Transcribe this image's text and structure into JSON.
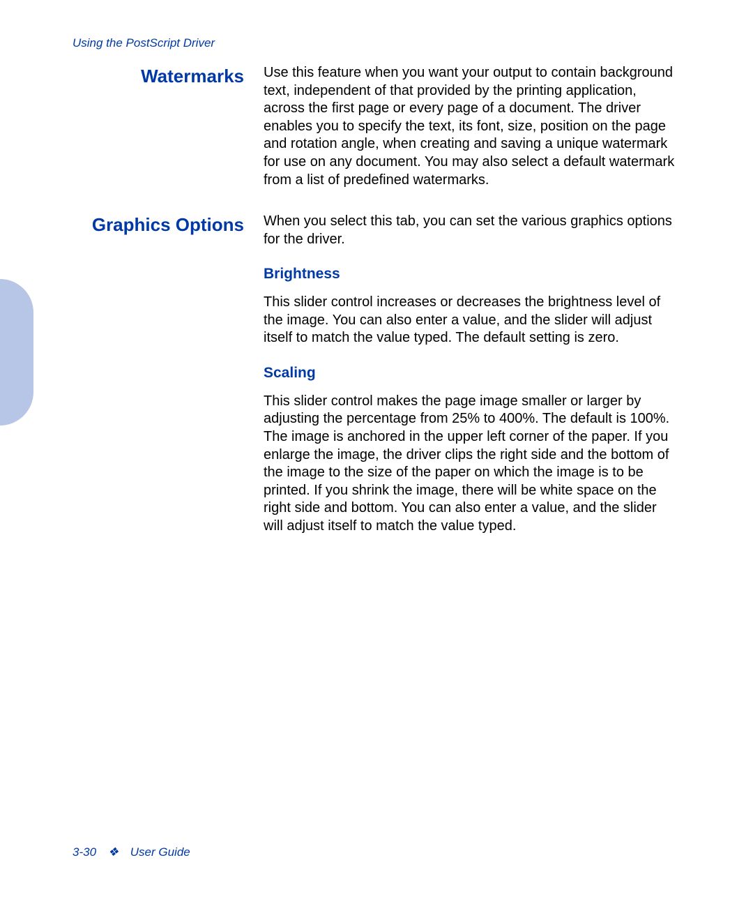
{
  "header": {
    "chapter": "Using the PostScript Driver"
  },
  "sections": [
    {
      "label": "Watermarks",
      "body": "Use this feature when you want your output to contain background text, independent of that provided by the printing application, across the first page or every page of a document. The driver enables you to specify the text, its font, size, position on the page and rotation angle, when creating and saving a unique watermark for use on any document. You may also select a default watermark from a list of predefined watermarks.",
      "subsections": []
    },
    {
      "label": "Graphics Options",
      "body": "When you select this tab, you can set the various graphics options for the driver.",
      "subsections": [
        {
          "heading": "Brightness",
          "body": "This slider control increases or decreases the brightness level of the image. You can also enter a value, and the slider will adjust itself to match the value typed. The default setting is zero."
        },
        {
          "heading": "Scaling",
          "body": "This slider control makes the page image smaller or larger by adjusting the percentage from 25% to 400%. The default is 100%. The image is anchored in the upper left corner of the paper. If you enlarge the image, the driver clips the right side and the bottom of the image to the size of the paper on which the image is to be printed. If you shrink the image, there will be white space on the right side and bottom. You can also enter a value, and the slider will adjust itself to match the value typed."
        }
      ]
    }
  ],
  "footer": {
    "page": "3-30",
    "bullet": "❖",
    "guide": "User Guide"
  },
  "colors": {
    "heading_blue": "#0039a6",
    "tab_blue": "#b7c5e6",
    "text": "#000000",
    "background": "#ffffff"
  }
}
